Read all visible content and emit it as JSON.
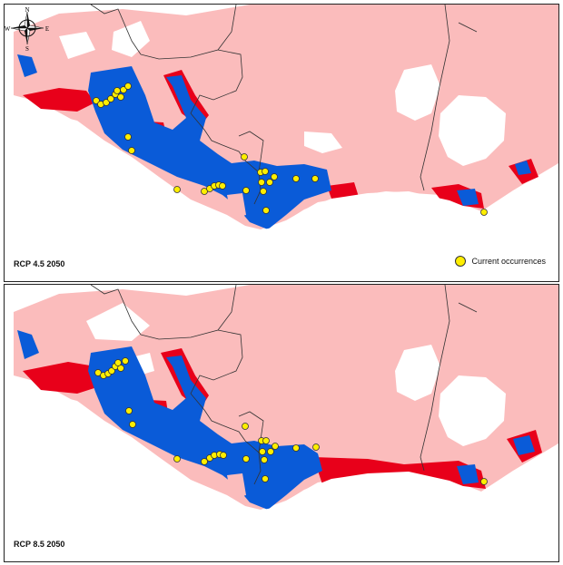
{
  "panels": [
    {
      "label": "RCP 4.5 2050"
    },
    {
      "label": "RCP 8.5 2050"
    }
  ],
  "legend": {
    "occurrences_label": "Current occurrences"
  },
  "compass": {
    "north": "N",
    "south": "S",
    "east": "E",
    "west": "W"
  },
  "colors": {
    "stable_suitable": "#0a5bd8",
    "lost": "#e8001a",
    "unsuitable": "#fbbcbc",
    "light": "#f4c8c8",
    "gained": "#8fb8ef",
    "occurrence": "#ffee00"
  }
}
